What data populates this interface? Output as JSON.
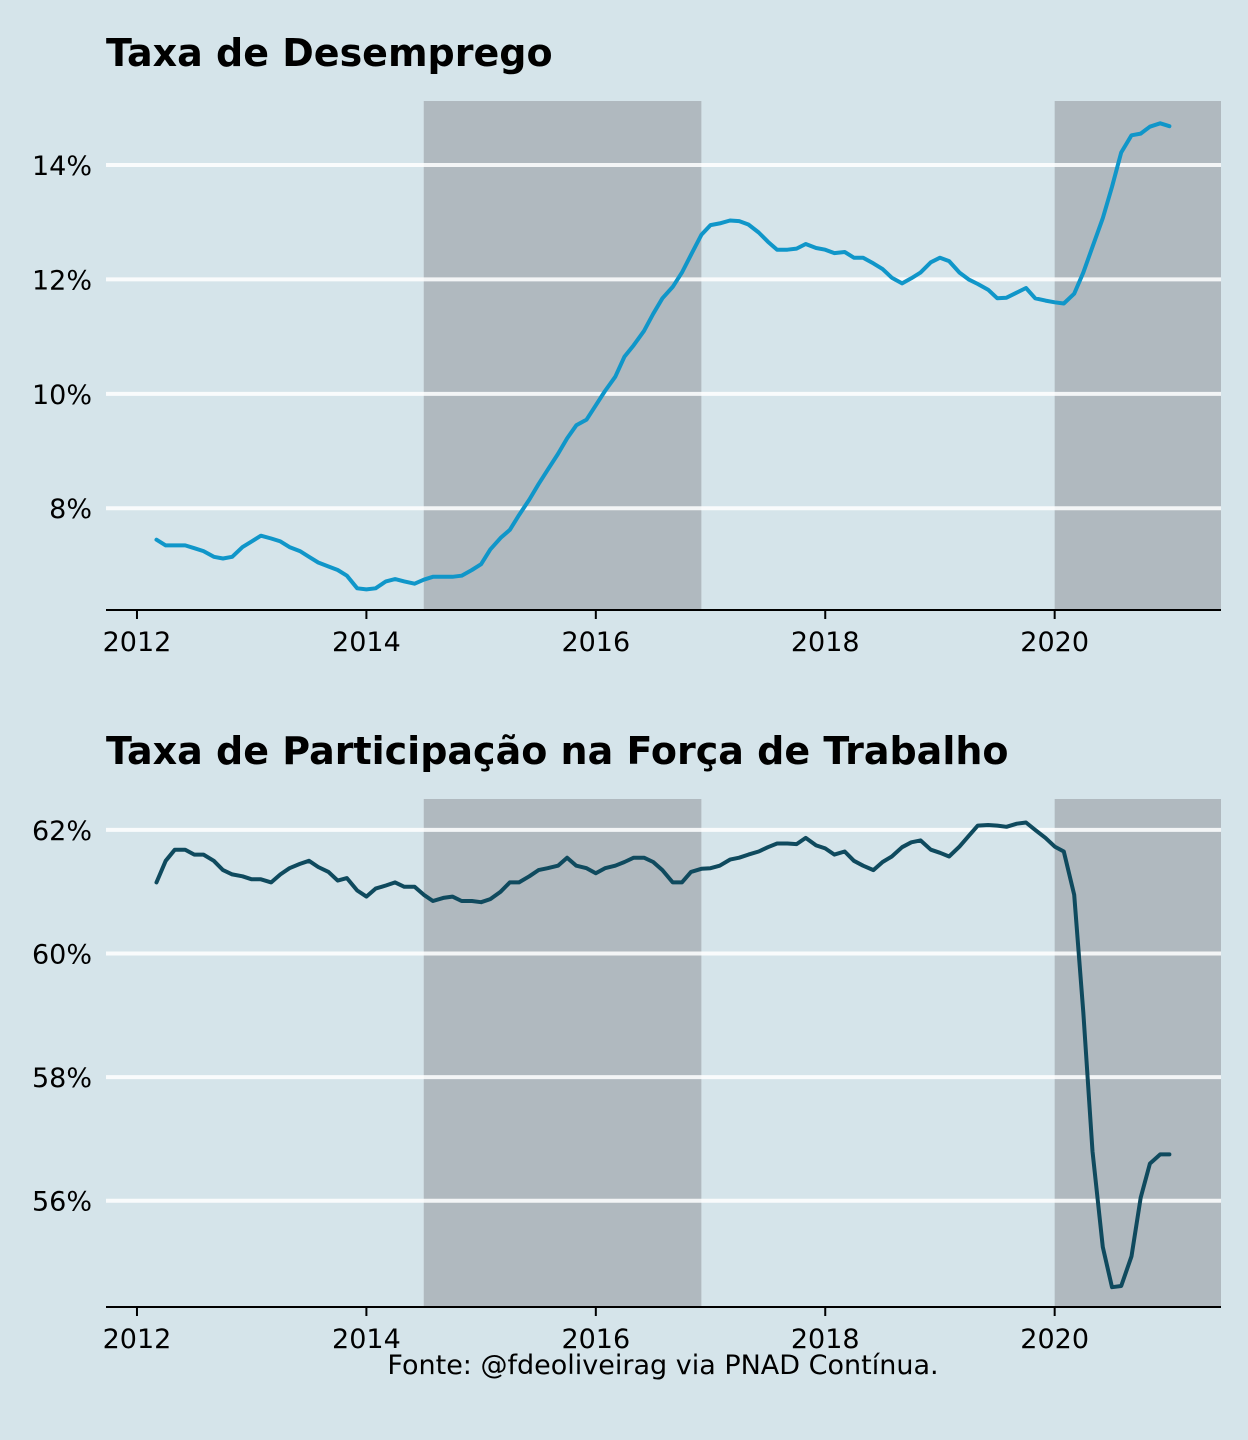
{
  "source_note": "Fonte: @fdeoliveirag via PNAD Contínua.",
  "colors": {
    "background": "#d5e4ea",
    "recession_shade": "#b0b9bf",
    "gridline": "#ffffff",
    "unemployment_line": "#1096c9",
    "participation_line": "#0f4a5e"
  },
  "chart_data": [
    {
      "type": "line",
      "title": "Taxa de Desemprego",
      "xlabel": "",
      "ylabel": "",
      "x_ticks": [
        2012,
        2014,
        2016,
        2018,
        2020
      ],
      "x_tick_labels": [
        "2012",
        "2014",
        "2016",
        "2018",
        "2020"
      ],
      "y_ticks": [
        8,
        10,
        12,
        14
      ],
      "y_tick_labels": [
        "8%",
        "10%",
        "12%",
        "14%"
      ],
      "xlim": [
        2011.73,
        2021.45
      ],
      "ylim": [
        6.22,
        15.12
      ],
      "grid": "horizontal",
      "recession_periods": [
        [
          2014.5,
          2016.92
        ],
        [
          2020.0,
          2021.45
        ]
      ],
      "series": [
        {
          "color": "#1096c9",
          "x": [
            2012.17,
            2012.25,
            2012.33,
            2012.42,
            2012.5,
            2012.58,
            2012.67,
            2012.75,
            2012.83,
            2012.92,
            2013.0,
            2013.08,
            2013.17,
            2013.25,
            2013.33,
            2013.42,
            2013.5,
            2013.58,
            2013.67,
            2013.75,
            2013.83,
            2013.92,
            2014.0,
            2014.08,
            2014.17,
            2014.25,
            2014.33,
            2014.42,
            2014.5,
            2014.58,
            2014.67,
            2014.75,
            2014.83,
            2014.92,
            2015.0,
            2015.08,
            2015.17,
            2015.25,
            2015.33,
            2015.42,
            2015.5,
            2015.58,
            2015.67,
            2015.75,
            2015.83,
            2015.92,
            2016.0,
            2016.08,
            2016.17,
            2016.25,
            2016.33,
            2016.42,
            2016.5,
            2016.58,
            2016.67,
            2016.75,
            2016.83,
            2016.92,
            2017.0,
            2017.08,
            2017.17,
            2017.25,
            2017.33,
            2017.42,
            2017.5,
            2017.58,
            2017.67,
            2017.75,
            2017.83,
            2017.92,
            2018.0,
            2018.08,
            2018.17,
            2018.25,
            2018.33,
            2018.42,
            2018.5,
            2018.58,
            2018.67,
            2018.75,
            2018.83,
            2018.92,
            2019.0,
            2019.08,
            2019.17,
            2019.25,
            2019.33,
            2019.42,
            2019.5,
            2019.58,
            2019.67,
            2019.75,
            2019.83,
            2019.92,
            2020.0,
            2020.08,
            2020.17,
            2020.25,
            2020.33,
            2020.42,
            2020.5,
            2020.58,
            2020.67,
            2020.75,
            2020.83,
            2020.92,
            2021.0
          ],
          "y": [
            7.45,
            7.35,
            7.35,
            7.35,
            7.3,
            7.25,
            7.15,
            7.12,
            7.15,
            7.32,
            7.42,
            7.52,
            7.47,
            7.42,
            7.32,
            7.25,
            7.15,
            7.05,
            6.98,
            6.92,
            6.82,
            6.6,
            6.58,
            6.6,
            6.72,
            6.76,
            6.72,
            6.68,
            6.75,
            6.8,
            6.8,
            6.8,
            6.82,
            6.92,
            7.02,
            7.28,
            7.48,
            7.62,
            7.88,
            8.15,
            8.42,
            8.67,
            8.95,
            9.22,
            9.45,
            9.55,
            9.8,
            10.05,
            10.3,
            10.65,
            10.85,
            11.1,
            11.4,
            11.67,
            11.87,
            12.12,
            12.43,
            12.78,
            12.95,
            12.98,
            13.03,
            13.02,
            12.96,
            12.82,
            12.66,
            12.52,
            12.52,
            12.54,
            12.62,
            12.55,
            12.52,
            12.46,
            12.48,
            12.38,
            12.38,
            12.28,
            12.18,
            12.03,
            11.93,
            12.02,
            12.12,
            12.3,
            12.38,
            12.32,
            12.12,
            12.0,
            11.92,
            11.82,
            11.67,
            11.68,
            11.77,
            11.85,
            11.67,
            11.63,
            11.6,
            11.58,
            11.75,
            12.12,
            12.57,
            13.07,
            13.62,
            14.22,
            14.52,
            14.55,
            14.67,
            14.73,
            14.68
          ]
        }
      ]
    },
    {
      "type": "line",
      "title": "Taxa de Participação na Força de Trabalho",
      "xlabel": "",
      "ylabel": "",
      "x_ticks": [
        2012,
        2014,
        2016,
        2018,
        2020
      ],
      "x_tick_labels": [
        "2012",
        "2014",
        "2016",
        "2018",
        "2020"
      ],
      "y_ticks": [
        56,
        58,
        60,
        62
      ],
      "y_tick_labels": [
        "56%",
        "58%",
        "60%",
        "62%"
      ],
      "xlim": [
        2011.73,
        2021.45
      ],
      "ylim": [
        54.28,
        62.5
      ],
      "grid": "horizontal",
      "recession_periods": [
        [
          2014.5,
          2016.92
        ],
        [
          2020.0,
          2021.45
        ]
      ],
      "series": [
        {
          "color": "#0f4a5e",
          "x": [
            2012.17,
            2012.25,
            2012.33,
            2012.42,
            2012.5,
            2012.58,
            2012.67,
            2012.75,
            2012.83,
            2012.92,
            2013.0,
            2013.08,
            2013.17,
            2013.25,
            2013.33,
            2013.42,
            2013.5,
            2013.58,
            2013.67,
            2013.75,
            2013.83,
            2013.92,
            2014.0,
            2014.08,
            2014.17,
            2014.25,
            2014.33,
            2014.42,
            2014.5,
            2014.58,
            2014.67,
            2014.75,
            2014.83,
            2014.92,
            2015.0,
            2015.08,
            2015.17,
            2015.25,
            2015.33,
            2015.42,
            2015.5,
            2015.58,
            2015.67,
            2015.75,
            2015.83,
            2015.92,
            2016.0,
            2016.08,
            2016.17,
            2016.25,
            2016.33,
            2016.42,
            2016.5,
            2016.58,
            2016.67,
            2016.75,
            2016.83,
            2016.92,
            2017.0,
            2017.08,
            2017.17,
            2017.25,
            2017.33,
            2017.42,
            2017.5,
            2017.58,
            2017.67,
            2017.75,
            2017.83,
            2017.92,
            2018.0,
            2018.08,
            2018.17,
            2018.25,
            2018.33,
            2018.42,
            2018.5,
            2018.58,
            2018.67,
            2018.75,
            2018.83,
            2018.92,
            2019.0,
            2019.08,
            2019.17,
            2019.25,
            2019.33,
            2019.42,
            2019.5,
            2019.58,
            2019.67,
            2019.75,
            2019.83,
            2019.92,
            2020.0,
            2020.08,
            2020.17,
            2020.25,
            2020.33,
            2020.42,
            2020.5,
            2020.58,
            2020.67,
            2020.75,
            2020.83,
            2020.92,
            2021.0
          ],
          "y": [
            61.15,
            61.5,
            61.68,
            61.68,
            61.6,
            61.6,
            61.5,
            61.35,
            61.28,
            61.25,
            61.2,
            61.2,
            61.15,
            61.28,
            61.38,
            61.45,
            61.5,
            61.4,
            61.32,
            61.18,
            61.22,
            61.02,
            60.92,
            61.05,
            61.1,
            61.15,
            61.08,
            61.08,
            60.95,
            60.85,
            60.9,
            60.92,
            60.85,
            60.85,
            60.83,
            60.88,
            61.0,
            61.15,
            61.15,
            61.25,
            61.35,
            61.38,
            61.42,
            61.55,
            61.42,
            61.38,
            61.3,
            61.38,
            61.42,
            61.48,
            61.55,
            61.55,
            61.48,
            61.35,
            61.15,
            61.15,
            61.32,
            61.37,
            61.38,
            61.42,
            61.52,
            61.55,
            61.6,
            61.65,
            61.72,
            61.78,
            61.78,
            61.77,
            61.87,
            61.75,
            61.7,
            61.6,
            61.65,
            61.5,
            61.42,
            61.35,
            61.48,
            61.57,
            61.72,
            61.8,
            61.83,
            61.68,
            61.63,
            61.57,
            61.73,
            61.9,
            62.07,
            62.08,
            62.07,
            62.05,
            62.1,
            62.12,
            62.0,
            61.87,
            61.73,
            61.65,
            60.95,
            59.05,
            56.8,
            55.25,
            54.6,
            54.62,
            55.1,
            56.05,
            56.6,
            56.75,
            56.75
          ]
        }
      ]
    }
  ]
}
